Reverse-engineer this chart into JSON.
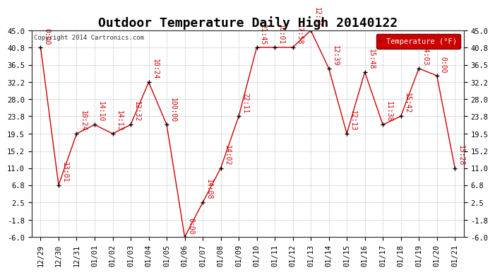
{
  "title": "Outdoor Temperature Daily High 20140122",
  "copyright_text": "Copyright 2014 Cartronics.com",
  "legend_label": "Temperature (°F)",
  "x_labels": [
    "12/29",
    "12/30",
    "12/31",
    "01/01",
    "01/02",
    "01/03",
    "01/04",
    "01/05",
    "01/06",
    "01/07",
    "01/08",
    "01/09",
    "01/10",
    "01/11",
    "01/12",
    "01/13",
    "01/14",
    "01/15",
    "01/16",
    "01/17",
    "01/18",
    "01/19",
    "01/20",
    "01/21"
  ],
  "y_values": [
    40.8,
    6.8,
    19.5,
    21.7,
    19.5,
    21.7,
    32.2,
    21.7,
    -6.0,
    2.5,
    11.0,
    23.8,
    40.8,
    40.8,
    40.8,
    45.0,
    35.6,
    19.5,
    34.7,
    21.7,
    23.8,
    35.6,
    33.8,
    11.0
  ],
  "time_labels": [
    "0:00",
    "13:01",
    "10:24",
    "14:10",
    "14:13",
    "12:32",
    "10:24",
    "100:00",
    "0:00",
    "14:08",
    "14:02",
    "22:11",
    "21:45",
    "10:01",
    "17:58",
    "12:35",
    "12:39",
    "12:13",
    "15:48",
    "11:38",
    "15:42",
    "14:03",
    "0:00",
    "13:28"
  ],
  "ylim": [
    -6.0,
    45.0
  ],
  "yticks": [
    45.0,
    40.8,
    36.5,
    32.2,
    28.0,
    23.8,
    19.5,
    15.2,
    11.0,
    6.8,
    2.5,
    -1.8,
    -6.0
  ],
  "line_color": "#cc0000",
  "marker_color": "#000000",
  "background_color": "#ffffff",
  "grid_color": "#999999",
  "title_fontsize": 13,
  "label_fontsize": 7.5,
  "annotation_fontsize": 7,
  "legend_bg": "#cc0000",
  "legend_text_color": "#ffffff",
  "fig_width": 6.9,
  "fig_height": 3.75,
  "dpi": 100
}
